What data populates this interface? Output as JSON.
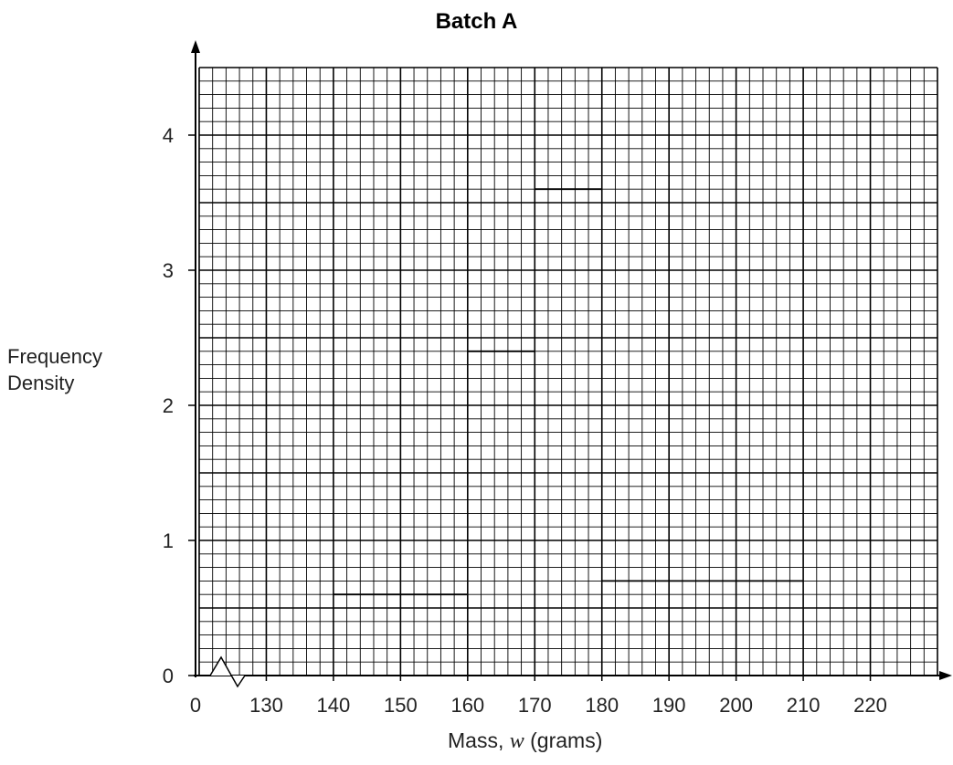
{
  "chart_data": {
    "type": "bar",
    "title": "Batch A",
    "xlabel_parts": [
      "Mass, ",
      "w",
      " (grams)"
    ],
    "ylabel_lines": [
      "Frequency",
      "Density"
    ],
    "x_axis_break": true,
    "x_tick_labels": [
      "0",
      "130",
      "140",
      "150",
      "160",
      "170",
      "180",
      "190",
      "200",
      "210",
      "220"
    ],
    "x_tick_values": [
      130,
      140,
      150,
      160,
      170,
      180,
      190,
      200,
      210,
      220
    ],
    "y_tick_labels": [
      "0",
      "1",
      "2",
      "3",
      "4"
    ],
    "xlim": [
      120,
      230
    ],
    "ylim": [
      0,
      4.5
    ],
    "grid": true,
    "bars": [
      {
        "x0": 140,
        "x1": 160,
        "value": 0.6
      },
      {
        "x0": 160,
        "x1": 170,
        "value": 2.4
      },
      {
        "x0": 170,
        "x1": 180,
        "value": 3.6
      },
      {
        "x0": 180,
        "x1": 210,
        "value": 0.7
      }
    ]
  }
}
